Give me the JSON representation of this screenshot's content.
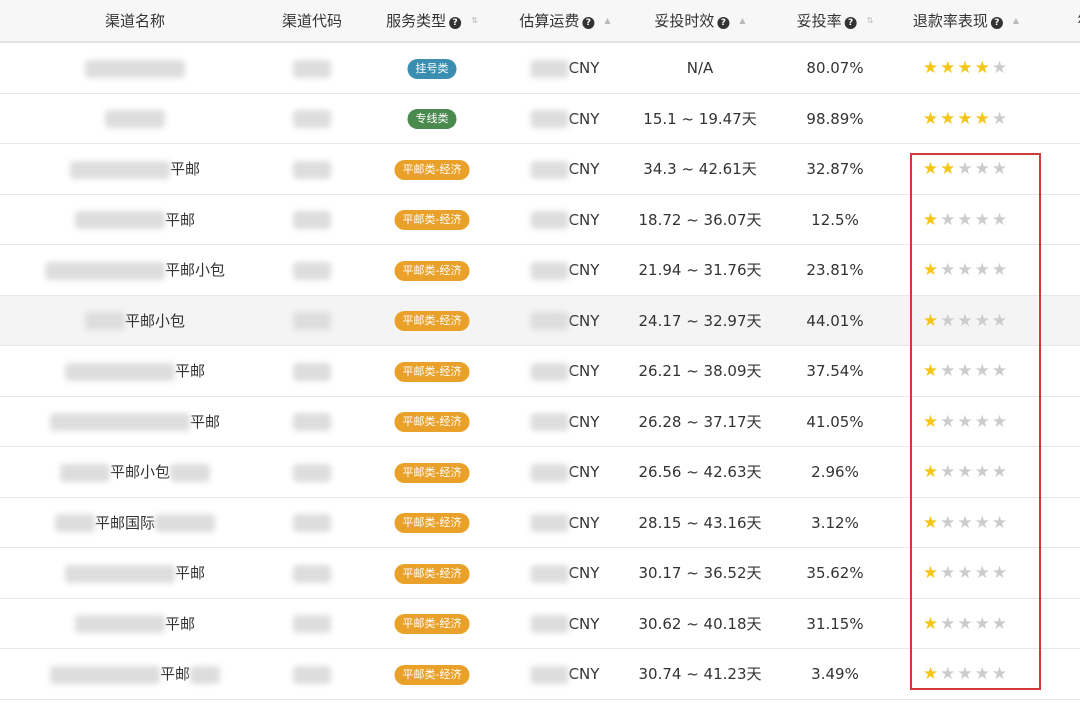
{
  "header": {
    "columns": [
      {
        "label": "渠道名称",
        "help": false,
        "sort": false
      },
      {
        "label": "渠道代码",
        "help": false,
        "sort": false
      },
      {
        "label": "服务类型",
        "help": true,
        "sort": "both"
      },
      {
        "label": "估算运费",
        "help": true,
        "sort": "asc"
      },
      {
        "label": "妥投时效",
        "help": true,
        "sort": "asc"
      },
      {
        "label": "妥投率",
        "help": true,
        "sort": "both"
      },
      {
        "label": "退款率表现",
        "help": true,
        "sort": "asc"
      },
      {
        "label": "符",
        "help": false,
        "sort": false
      }
    ]
  },
  "colors": {
    "registered": "#3a8fb0",
    "dedicated": "#4a8a4e",
    "economy": "#e9a12a",
    "star_on": "#f5c518",
    "star_off": "#cccccc",
    "highlight": "#d03a3a"
  },
  "rows": [
    {
      "name": "",
      "service": "挂号类",
      "service_type": "registered",
      "currency": "CNY",
      "time": "N/A",
      "rate": "80.07%",
      "stars": 4
    },
    {
      "name": "",
      "service": "专线类",
      "service_type": "dedicated",
      "currency": "CNY",
      "time": "15.1 ~ 19.47天",
      "rate": "98.89%",
      "stars": 4
    },
    {
      "name": "平邮",
      "service": "平邮类-经济",
      "service_type": "economy",
      "currency": "CNY",
      "time": "34.3 ~ 42.61天",
      "rate": "32.87%",
      "stars": 2
    },
    {
      "name": "平邮",
      "service": "平邮类-经济",
      "service_type": "economy",
      "currency": "CNY",
      "time": "18.72 ~ 36.07天",
      "rate": "12.5%",
      "stars": 1
    },
    {
      "name": "平邮小包",
      "service": "平邮类-经济",
      "service_type": "economy",
      "currency": "CNY",
      "time": "21.94 ~ 31.76天",
      "rate": "23.81%",
      "stars": 1
    },
    {
      "name": "平邮小包",
      "service": "平邮类-经济",
      "service_type": "economy",
      "currency": "CNY",
      "time": "24.17 ~ 32.97天",
      "rate": "44.01%",
      "stars": 1
    },
    {
      "name": "平邮",
      "service": "平邮类-经济",
      "service_type": "economy",
      "currency": "CNY",
      "time": "26.21 ~ 38.09天",
      "rate": "37.54%",
      "stars": 1
    },
    {
      "name": "平邮",
      "service": "平邮类-经济",
      "service_type": "economy",
      "currency": "CNY",
      "time": "26.28 ~ 37.17天",
      "rate": "41.05%",
      "stars": 1
    },
    {
      "name": "平邮小包",
      "service": "平邮类-经济",
      "service_type": "economy",
      "currency": "CNY",
      "time": "26.56 ~ 42.63天",
      "rate": "2.96%",
      "stars": 1
    },
    {
      "name": "平邮国际",
      "service": "平邮类-经济",
      "service_type": "economy",
      "currency": "CNY",
      "time": "28.15 ~ 43.16天",
      "rate": "3.12%",
      "stars": 1
    },
    {
      "name": "平邮",
      "service": "平邮类-经济",
      "service_type": "economy",
      "currency": "CNY",
      "time": "30.17 ~ 36.52天",
      "rate": "35.62%",
      "stars": 1
    },
    {
      "name": "平邮",
      "service": "平邮类-经济",
      "service_type": "economy",
      "currency": "CNY",
      "time": "30.62 ~ 40.18天",
      "rate": "31.15%",
      "stars": 1
    },
    {
      "name": "平邮",
      "service": "平邮类-经济",
      "service_type": "economy",
      "currency": "CNY",
      "time": "30.74 ~ 41.23天",
      "rate": "3.49%",
      "stars": 1
    }
  ]
}
